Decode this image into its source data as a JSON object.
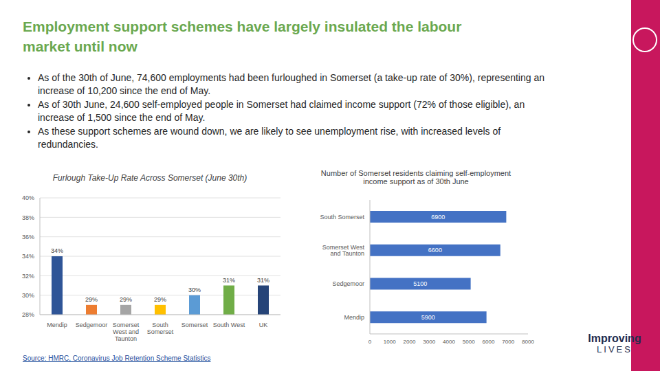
{
  "title": "Employment support schemes have largely insulated the labour market until now",
  "bullets": [
    "As of the 30th of June, 74,600 employments had been furloughed in Somerset (a take-up rate of 30%), representing an increase of 10,200 since the end of May.",
    "As of 30th June, 24,600 self-employed people in Somerset had claimed income support (72% of those eligible), an increase of 1,500 since the end of May.",
    "As these support schemes are wound down, we are likely to see unemployment rise, with increased levels of redundancies."
  ],
  "source": "Source: HMRC, Coronavirus Job Retention Scheme Statistics",
  "logo_text": [
    "Improving",
    "LIVES"
  ],
  "chart_data": [
    {
      "type": "bar",
      "title": "Furlough Take-Up Rate Across Somerset (June 30th)",
      "categories": [
        "Mendip",
        "Sedgemoor",
        "Somerset West and Taunton",
        "South Somerset",
        "Somerset",
        "South West",
        "UK"
      ],
      "values": [
        34,
        29,
        29,
        29,
        30,
        31,
        31
      ],
      "value_labels": [
        "34%",
        "29%",
        "29%",
        "29%",
        "30%",
        "31%",
        "31%"
      ],
      "colors": [
        "#2f5597",
        "#ed7d31",
        "#a5a5a5",
        "#ffc000",
        "#5b9bd5",
        "#70ad47",
        "#264478"
      ],
      "ylim": [
        28,
        40
      ],
      "yticks": [
        {
          "value": 28,
          "label": "28%"
        },
        {
          "value": 30,
          "label": "30%"
        },
        {
          "value": 32,
          "label": "32%"
        },
        {
          "value": 34,
          "label": "34%"
        },
        {
          "value": 36,
          "label": "36%"
        },
        {
          "value": 38,
          "label": "38%"
        },
        {
          "value": 40,
          "label": "40%"
        }
      ],
      "grid": true,
      "data_labels": true
    },
    {
      "type": "bar",
      "orientation": "horizontal",
      "title": "Number of Somerset residents claiming self-employment income support as of 30th June",
      "categories": [
        "South Somerset",
        "Somerset West and Taunton",
        "Sedgemoor",
        "Mendip"
      ],
      "values": [
        6900,
        6600,
        5100,
        5900
      ],
      "color": "#4472c4",
      "xlim": [
        0,
        8000
      ],
      "xticks": [
        0,
        1000,
        2000,
        3000,
        4000,
        5000,
        6000,
        7000,
        8000
      ],
      "data_labels": true
    }
  ]
}
